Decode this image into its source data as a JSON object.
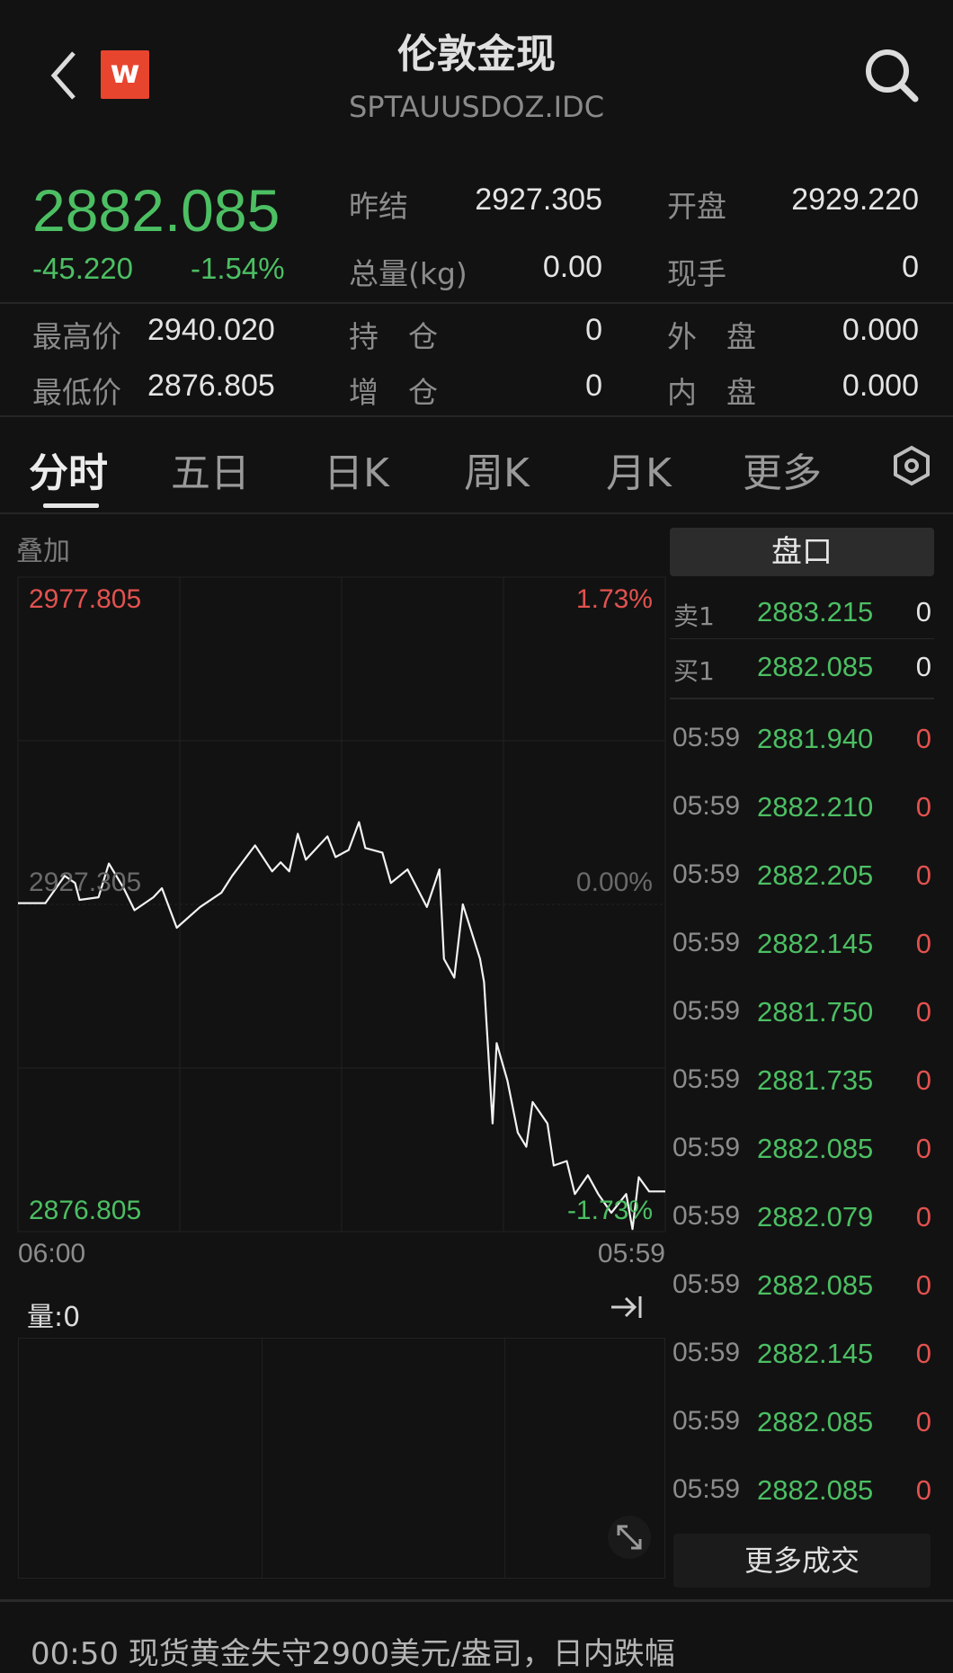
{
  "header": {
    "title": "伦敦金现",
    "subtitle": "SPTAUUSDOZ.IDC",
    "logo_letter": "w",
    "logo_color": "#e8452f"
  },
  "quote": {
    "price": "2882.085",
    "change": "-45.220",
    "change_pct": "-1.54%",
    "stats": [
      {
        "label": "昨结",
        "value": "2927.305"
      },
      {
        "label": "开盘",
        "value": "2929.220"
      },
      {
        "label": "总量(kg)",
        "value": "0.00"
      },
      {
        "label": "现手",
        "value": "0"
      },
      {
        "label": "最高价",
        "value": "2940.020"
      },
      {
        "label": "持　仓",
        "value": "0"
      },
      {
        "label": "外　盘",
        "value": "0.000"
      },
      {
        "label": "最低价",
        "value": "2876.805"
      },
      {
        "label": "增　仓",
        "value": "0"
      },
      {
        "label": "内　盘",
        "value": "0.000"
      }
    ]
  },
  "tabs": [
    "分时",
    "五日",
    "日K",
    "周K",
    "月K",
    "更多"
  ],
  "active_tab": "分时",
  "chart": {
    "overlay_label": "叠加",
    "volume_label": "量:0"
  },
  "chart_data": {
    "type": "line",
    "y_max_label": "2977.805",
    "y_mid_label": "2927.305",
    "y_min_label": "2876.805",
    "pct_max_label": "1.73%",
    "pct_mid_label": "0.00%",
    "pct_min_label": "-1.73%",
    "ylim": [
      2876.805,
      2977.805
    ],
    "x_start_label": "06:00",
    "x_end_label": "05:59",
    "grid": true,
    "points": [
      [
        "06:00",
        2927.5
      ],
      [
        "07:01",
        2927.5
      ],
      [
        "07:44",
        2931.7
      ],
      [
        "08:07",
        2930.6
      ],
      [
        "08:17",
        2928.0
      ],
      [
        "08:59",
        2928.4
      ],
      [
        "09:22",
        2933.6
      ],
      [
        "09:55",
        2929.8
      ],
      [
        "10:19",
        2926.4
      ],
      [
        "11:01",
        2928.4
      ],
      [
        "11:20",
        2929.8
      ],
      [
        "11:53",
        2923.7
      ],
      [
        "12:45",
        2926.9
      ],
      [
        "13:32",
        2929.1
      ],
      [
        "13:56",
        2931.7
      ],
      [
        "14:47",
        2936.4
      ],
      [
        "15:25",
        2932.4
      ],
      [
        "15:44",
        2933.8
      ],
      [
        "16:03",
        2932.4
      ],
      [
        "16:22",
        2938.2
      ],
      [
        "16:40",
        2934.2
      ],
      [
        "17:28",
        2937.8
      ],
      [
        "17:46",
        2934.6
      ],
      [
        "18:15",
        2935.7
      ],
      [
        "18:38",
        2940.0
      ],
      [
        "18:52",
        2936.0
      ],
      [
        "19:30",
        2935.3
      ],
      [
        "19:49",
        2930.6
      ],
      [
        "20:26",
        2932.7
      ],
      [
        "21:09",
        2926.9
      ],
      [
        "21:37",
        2932.7
      ],
      [
        "21:47",
        2918.9
      ],
      [
        "22:10",
        2916.0
      ],
      [
        "22:29",
        2927.3
      ],
      [
        "23:07",
        2918.9
      ],
      [
        "23:16",
        2915.3
      ],
      [
        "23:35",
        2893.5
      ],
      [
        "23:44",
        2905.9
      ],
      [
        "00:08",
        2900.1
      ],
      [
        "00:31",
        2892.1
      ],
      [
        "00:50",
        2889.9
      ],
      [
        "01:04",
        2896.8
      ],
      [
        "01:37",
        2893.5
      ],
      [
        "01:51",
        2887.0
      ],
      [
        "02:20",
        2887.7
      ],
      [
        "02:38",
        2882.6
      ],
      [
        "03:07",
        2885.5
      ],
      [
        "03:30",
        2882.6
      ],
      [
        "03:59",
        2879.7
      ],
      [
        "04:32",
        2882.6
      ],
      [
        "04:46",
        2877.2
      ],
      [
        "05:00",
        2885.2
      ],
      [
        "05:23",
        2883.0
      ],
      [
        "05:59",
        2883.0
      ]
    ]
  },
  "orderbook": {
    "title": "盘口",
    "asks": [
      {
        "label": "卖1",
        "price": "2883.215",
        "volume": "0"
      }
    ],
    "bids": [
      {
        "label": "买1",
        "price": "2882.085",
        "volume": "0"
      }
    ],
    "trades": [
      {
        "time": "05:59",
        "price": "2881.940",
        "volume": "0"
      },
      {
        "time": "05:59",
        "price": "2882.210",
        "volume": "0"
      },
      {
        "time": "05:59",
        "price": "2882.205",
        "volume": "0"
      },
      {
        "time": "05:59",
        "price": "2882.145",
        "volume": "0"
      },
      {
        "time": "05:59",
        "price": "2881.750",
        "volume": "0"
      },
      {
        "time": "05:59",
        "price": "2881.735",
        "volume": "0"
      },
      {
        "time": "05:59",
        "price": "2882.085",
        "volume": "0"
      },
      {
        "time": "05:59",
        "price": "2882.079",
        "volume": "0"
      },
      {
        "time": "05:59",
        "price": "2882.085",
        "volume": "0"
      },
      {
        "time": "05:59",
        "price": "2882.145",
        "volume": "0"
      },
      {
        "time": "05:59",
        "price": "2882.085",
        "volume": "0"
      },
      {
        "time": "05:59",
        "price": "2882.085",
        "volume": "0"
      }
    ],
    "more_label": "更多成交"
  },
  "news_ticker": "00:50 现货黄金失守2900美元/盎司，日内跌幅"
}
